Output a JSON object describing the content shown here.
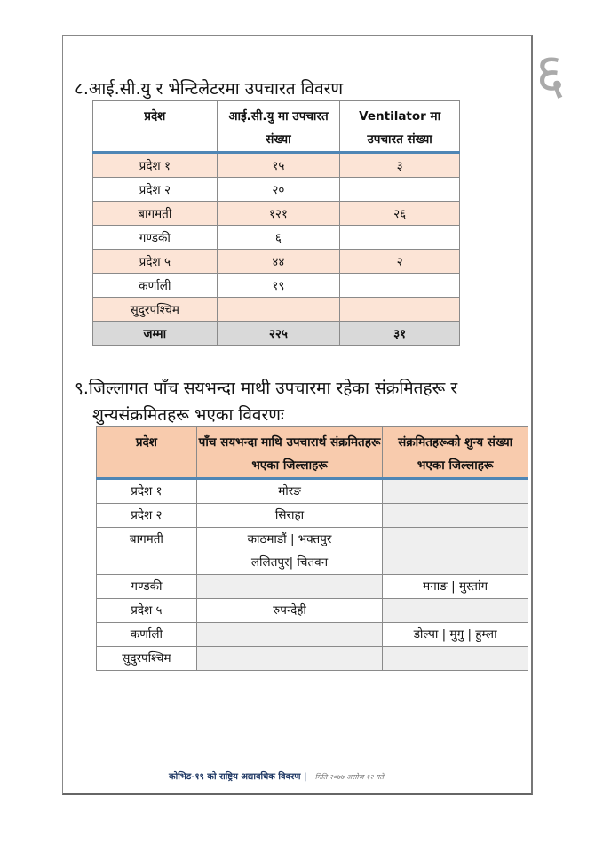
{
  "page_number": "६",
  "section8": {
    "heading": "८.आई.सी.यु र भेन्टिलेटरमा उपचारत विवरण",
    "headers": [
      "प्रदेश",
      "आई.सी.यु मा उपचारत संख्या",
      "Ventilator मा उपचारत संख्या"
    ],
    "rows": [
      [
        "प्रदेश १",
        "१५",
        "३"
      ],
      [
        "प्रदेश २",
        "२०",
        ""
      ],
      [
        "बागमती",
        "१२१",
        "२६"
      ],
      [
        "गण्डकी",
        "६",
        ""
      ],
      [
        "प्रदेश ५",
        "४४",
        "२"
      ],
      [
        "कर्णाली",
        "१९",
        ""
      ],
      [
        "सुदुरपश्चिम",
        "",
        ""
      ]
    ],
    "total": [
      "जम्मा",
      "२२५",
      "३१"
    ],
    "colors": {
      "row_highlight": "#fce4d6",
      "total_row": "#d9d9d9",
      "header_rule": "#4f86b5"
    }
  },
  "section9": {
    "heading_line1": "९.जिल्लागत पाँच सयभन्दा माथी उपचारमा रहेका संक्रमितहरू र",
    "heading_line2": "शुन्यसंक्रमितहरू भएका विवरणः",
    "headers": [
      "प्रदेश",
      "पाँच सयभन्दा माथि उपचारार्थ संक्रमितहरू भएका जिल्लाहरू",
      "संक्रमितहरूको शुन्य संख्या भएका जिल्लाहरू"
    ],
    "rows": [
      [
        "प्रदेश १",
        "मोरङ",
        ""
      ],
      [
        "प्रदेश २",
        "सिराहा",
        ""
      ],
      [
        "बागमती",
        "काठमाडौं | भक्तपुर\nललितपुर| चितवन",
        ""
      ],
      [
        "गण्डकी",
        "",
        "मनाङ | मुस्तांग"
      ],
      [
        "प्रदेश ५",
        "रुपन्देही",
        ""
      ],
      [
        "कर्णाली",
        "",
        "डोल्पा | मुगु | हुम्ला"
      ],
      [
        "सुदुरपश्चिम",
        "",
        ""
      ]
    ],
    "colors": {
      "header_bg": "#f8cbad",
      "empty_cell": "#efefef"
    }
  },
  "footer": {
    "title": "कोभिड-१९ को राष्ट्रिय अद्यावधिक विवरण |",
    "date": "मिति २०७७ असोज १२ गते"
  }
}
